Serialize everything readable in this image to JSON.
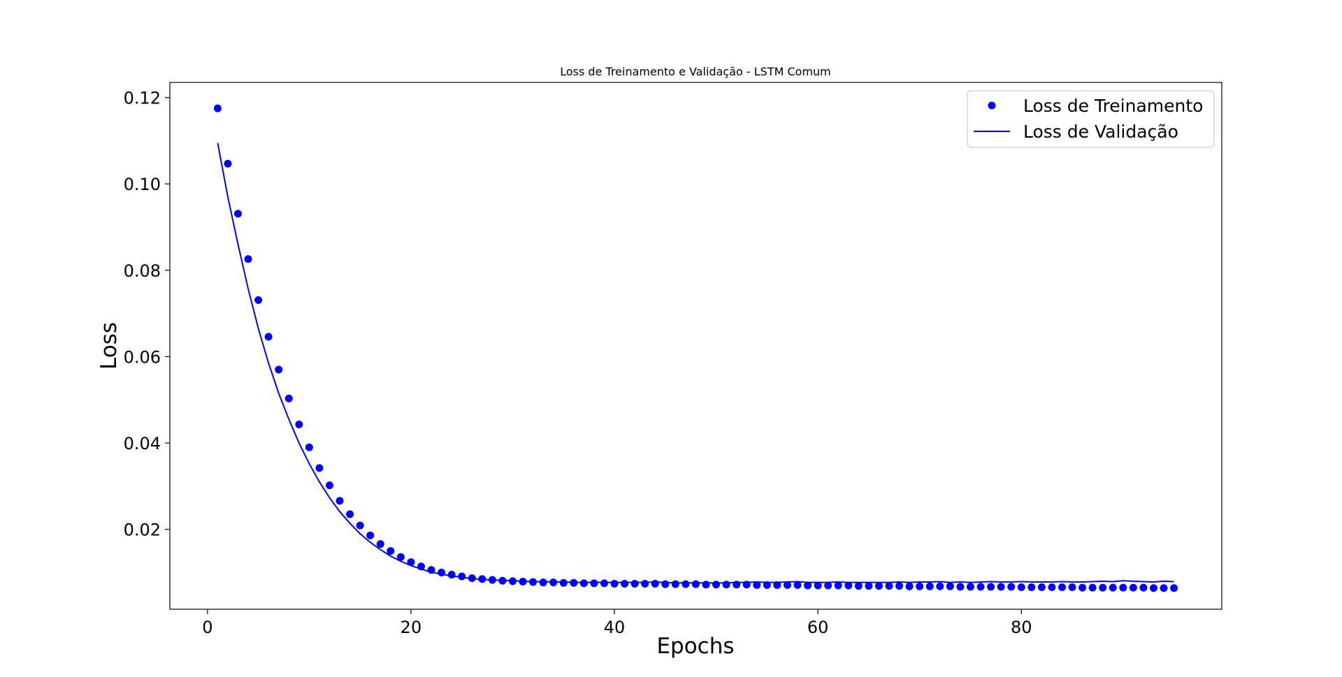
{
  "chart_data": {
    "type": "line",
    "title": "Loss de Treinamento e Validação - LSTM Comum",
    "xlabel": "Epochs",
    "ylabel": "Loss",
    "xlim": [
      -3.7,
      99.7
    ],
    "ylim": [
      0.0015,
      0.1235
    ],
    "xticks": [
      0,
      20,
      40,
      60,
      80
    ],
    "yticks": [
      0.02,
      0.04,
      0.06,
      0.08,
      0.1,
      0.12
    ],
    "ytick_labels": [
      "0.02",
      "0.04",
      "0.06",
      "0.08",
      "0.10",
      "0.12"
    ],
    "grid": false,
    "legend_position": "top-right",
    "colors": {
      "series": "#0000ff"
    },
    "series": [
      {
        "name": "Loss de Treinamento",
        "style": "markers",
        "x": [
          1,
          2,
          3,
          4,
          5,
          6,
          7,
          8,
          9,
          10,
          11,
          12,
          13,
          14,
          15,
          16,
          17,
          18,
          19,
          20,
          21,
          22,
          23,
          24,
          25,
          26,
          27,
          28,
          29,
          30,
          31,
          32,
          33,
          34,
          35,
          36,
          37,
          38,
          39,
          40,
          41,
          42,
          43,
          44,
          45,
          46,
          47,
          48,
          49,
          50,
          51,
          52,
          53,
          54,
          55,
          56,
          57,
          58,
          59,
          60,
          61,
          62,
          63,
          64,
          65,
          66,
          67,
          68,
          69,
          70,
          71,
          72,
          73,
          74,
          75,
          76,
          77,
          78,
          79,
          80,
          81,
          82,
          83,
          84,
          85,
          86,
          87,
          88,
          89,
          90,
          91,
          92,
          93,
          94,
          95
        ],
        "values": [
          0.1175,
          0.1047,
          0.0931,
          0.0826,
          0.0731,
          0.0646,
          0.057,
          0.0503,
          0.0443,
          0.039,
          0.0342,
          0.0302,
          0.0266,
          0.0235,
          0.0209,
          0.0186,
          0.0166,
          0.015,
          0.0136,
          0.0124,
          0.0114,
          0.0106,
          0.01,
          0.0095,
          0.0091,
          0.0087,
          0.0085,
          0.0083,
          0.0081,
          0.008,
          0.0079,
          0.0078,
          0.0077,
          0.0077,
          0.0076,
          0.0076,
          0.0075,
          0.0075,
          0.0075,
          0.0074,
          0.0074,
          0.0074,
          0.0074,
          0.0074,
          0.0073,
          0.0073,
          0.0073,
          0.0073,
          0.0072,
          0.0072,
          0.0072,
          0.0072,
          0.0072,
          0.0071,
          0.0071,
          0.0071,
          0.0071,
          0.0071,
          0.007,
          0.007,
          0.007,
          0.007,
          0.007,
          0.0069,
          0.0069,
          0.0069,
          0.0069,
          0.0069,
          0.0068,
          0.0068,
          0.0068,
          0.0068,
          0.0068,
          0.0067,
          0.0067,
          0.0067,
          0.0067,
          0.0067,
          0.0067,
          0.0066,
          0.0066,
          0.0066,
          0.0066,
          0.0066,
          0.0066,
          0.0065,
          0.0065,
          0.0065,
          0.0065,
          0.0065,
          0.0065,
          0.0065,
          0.0064,
          0.0064,
          0.0064
        ]
      },
      {
        "name": "Loss de Validação",
        "style": "line",
        "x": [
          1,
          2,
          3,
          4,
          5,
          6,
          7,
          8,
          9,
          10,
          11,
          12,
          13,
          14,
          15,
          16,
          17,
          18,
          19,
          20,
          21,
          22,
          23,
          24,
          25,
          26,
          27,
          28,
          29,
          30,
          31,
          32,
          33,
          34,
          35,
          36,
          37,
          38,
          39,
          40,
          41,
          42,
          43,
          44,
          45,
          46,
          47,
          48,
          49,
          50,
          51,
          52,
          53,
          54,
          55,
          56,
          57,
          58,
          59,
          60,
          61,
          62,
          63,
          64,
          65,
          66,
          67,
          68,
          69,
          70,
          71,
          72,
          73,
          74,
          75,
          76,
          77,
          78,
          79,
          80,
          81,
          82,
          83,
          84,
          85,
          86,
          87,
          88,
          89,
          90,
          91,
          92,
          93,
          94,
          95
        ],
        "values": [
          0.1095,
          0.097,
          0.086,
          0.0757,
          0.0665,
          0.0585,
          0.0515,
          0.0455,
          0.04,
          0.0352,
          0.031,
          0.0273,
          0.0241,
          0.0214,
          0.019,
          0.017,
          0.0153,
          0.0138,
          0.0126,
          0.0116,
          0.0108,
          0.0101,
          0.0096,
          0.0092,
          0.0089,
          0.0086,
          0.0084,
          0.0083,
          0.0082,
          0.0081,
          0.008,
          0.0079,
          0.0079,
          0.0078,
          0.0078,
          0.0077,
          0.0077,
          0.0077,
          0.0077,
          0.0077,
          0.0077,
          0.0077,
          0.0077,
          0.0078,
          0.0077,
          0.0076,
          0.0076,
          0.0076,
          0.0076,
          0.0076,
          0.0076,
          0.0077,
          0.0077,
          0.0078,
          0.0077,
          0.0077,
          0.0078,
          0.0079,
          0.0077,
          0.0077,
          0.0077,
          0.0078,
          0.0077,
          0.0077,
          0.0077,
          0.0077,
          0.0077,
          0.0078,
          0.0077,
          0.0078,
          0.0078,
          0.0079,
          0.0077,
          0.0078,
          0.0077,
          0.0078,
          0.0079,
          0.0078,
          0.0078,
          0.0079,
          0.0078,
          0.0078,
          0.0078,
          0.0079,
          0.0078,
          0.0078,
          0.0079,
          0.008,
          0.0079,
          0.0081,
          0.008,
          0.0079,
          0.0078,
          0.008,
          0.0079
        ]
      }
    ]
  }
}
